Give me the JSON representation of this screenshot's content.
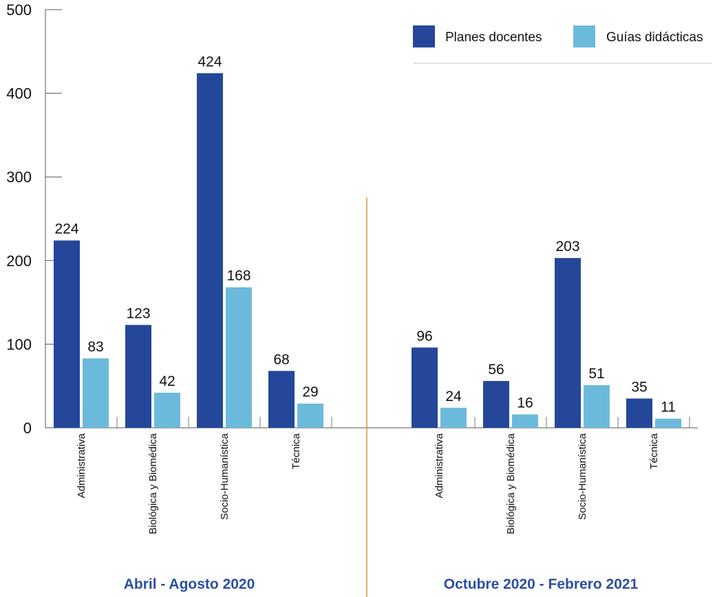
{
  "chart_data": {
    "type": "bar",
    "ylim": [
      0,
      500
    ],
    "yticks": [
      "0",
      "100",
      "200",
      "300",
      "400",
      "500"
    ],
    "colors": {
      "Planes docentes": "#24479a",
      "Guías didácticas": "#6cbadb",
      "divider": "#e8913a",
      "period_label": "#2a4fa3"
    },
    "legend": {
      "position": "top-right",
      "items": [
        "Planes docentes",
        "Guías didácticas"
      ]
    },
    "series": [
      {
        "name": "Planes docentes",
        "values": [
          224,
          123,
          424,
          68,
          96,
          56,
          203,
          35
        ]
      },
      {
        "name": "Guías didácticas",
        "values": [
          83,
          42,
          168,
          29,
          24,
          16,
          51,
          11
        ]
      }
    ],
    "categories": [
      "Administrativa",
      "Biológica y Biomédica",
      "Socio-Humanística",
      "Técnica",
      "Administrativa",
      "Biológica y Biomédica",
      "Socio-Humanística",
      "Técnica"
    ],
    "periods": [
      {
        "label": "Abril - Agosto 2020",
        "category_indices": [
          0,
          1,
          2,
          3
        ]
      },
      {
        "label": "Octubre 2020 - Febrero 2021",
        "category_indices": [
          4,
          5,
          6,
          7
        ]
      }
    ]
  }
}
